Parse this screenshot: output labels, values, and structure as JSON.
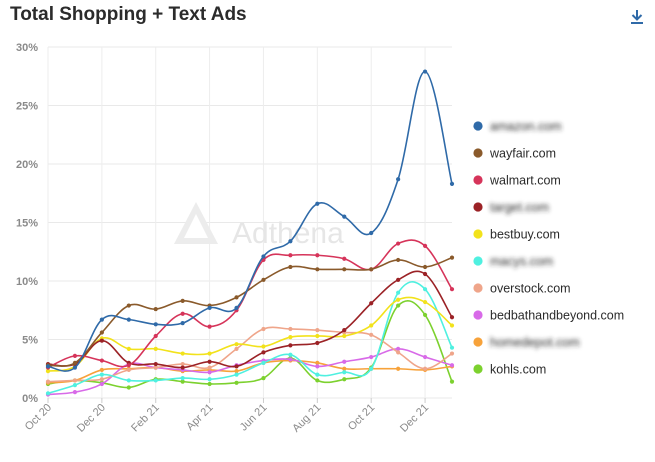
{
  "header": {
    "title": "Total Shopping + Text Ads",
    "download_icon": "download-icon"
  },
  "watermark": {
    "text": "Adthena"
  },
  "chart_data": {
    "type": "line",
    "title": "Total Shopping + Text Ads",
    "ylim": [
      0,
      30
    ],
    "yticks": [
      "0%",
      "5%",
      "10%",
      "15%",
      "20%",
      "25%",
      "30%"
    ],
    "xticks": [
      "Oct 20",
      "Dec 20",
      "Feb 21",
      "Apr 21",
      "Jun 21",
      "Aug 21",
      "Oct 21",
      "Dec 21"
    ],
    "x": [
      "Oct 20",
      "Nov 20",
      "Dec 20",
      "Jan 21",
      "Feb 21",
      "Mar 21",
      "Apr 21",
      "May 21",
      "Jun 21",
      "Jul 21",
      "Aug 21",
      "Sep 21",
      "Oct 21",
      "Nov 21",
      "Dec 21",
      "Jan 22"
    ],
    "grid": true,
    "legend_position": "right",
    "series": [
      {
        "name": "amazon.com",
        "color": "#2f6aa8",
        "blurred": true,
        "values": [
          2.7,
          2.6,
          6.7,
          6.7,
          6.3,
          6.4,
          7.7,
          7.7,
          12.1,
          13.4,
          16.6,
          15.5,
          14.1,
          18.7,
          27.9,
          18.3
        ]
      },
      {
        "name": "wayfair.com",
        "color": "#8a5a2b",
        "blurred": false,
        "values": [
          2.8,
          3.0,
          5.6,
          7.9,
          7.6,
          8.3,
          7.9,
          8.6,
          10.1,
          11.2,
          11.0,
          11.0,
          11.0,
          11.8,
          11.2,
          12.0
        ]
      },
      {
        "name": "walmart.com",
        "color": "#d6345a",
        "blurred": false,
        "values": [
          2.6,
          3.6,
          3.2,
          2.8,
          5.3,
          7.2,
          6.1,
          7.5,
          11.8,
          12.2,
          12.2,
          11.9,
          11.0,
          13.2,
          13.0,
          9.3
        ]
      },
      {
        "name": "target.com",
        "color": "#9b2226",
        "blurred": true,
        "values": [
          2.9,
          2.9,
          4.9,
          3.0,
          2.9,
          2.6,
          3.1,
          2.7,
          3.9,
          4.5,
          4.7,
          5.8,
          8.1,
          10.1,
          10.6,
          6.9
        ]
      },
      {
        "name": "bestbuy.com",
        "color": "#f2e21b",
        "blurred": false,
        "values": [
          2.3,
          2.7,
          5.1,
          4.2,
          4.2,
          3.8,
          3.8,
          4.6,
          4.4,
          5.2,
          5.3,
          5.3,
          6.2,
          8.4,
          8.2,
          6.2
        ]
      },
      {
        "name": "macys.com",
        "color": "#4ff0e0",
        "blurred": true,
        "values": [
          0.4,
          1.1,
          2.0,
          1.5,
          1.5,
          1.7,
          1.6,
          2.0,
          3.0,
          3.7,
          2.0,
          2.2,
          2.5,
          9.0,
          9.3,
          4.3
        ]
      },
      {
        "name": "overstock.com",
        "color": "#efa58a",
        "blurred": false,
        "values": [
          1.4,
          1.5,
          1.6,
          2.4,
          2.6,
          2.9,
          2.6,
          4.2,
          5.9,
          5.9,
          5.8,
          5.6,
          5.4,
          3.9,
          2.5,
          3.8
        ]
      },
      {
        "name": "bedbathandbeyond.com",
        "color": "#d86ae8",
        "blurred": false,
        "values": [
          0.3,
          0.5,
          1.2,
          2.9,
          2.6,
          2.4,
          2.2,
          2.8,
          3.2,
          3.3,
          2.7,
          3.1,
          3.5,
          4.2,
          3.5,
          2.8
        ]
      },
      {
        "name": "homedepot.com",
        "color": "#f7a23a",
        "blurred": true,
        "values": [
          1.3,
          1.5,
          2.4,
          2.5,
          2.6,
          2.3,
          2.4,
          2.3,
          3.0,
          3.2,
          3.0,
          2.5,
          2.5,
          2.5,
          2.4,
          2.7
        ]
      },
      {
        "name": "kohls.com",
        "color": "#7cd12e",
        "blurred": false,
        "values": [
          1.2,
          1.5,
          1.3,
          0.9,
          1.6,
          1.4,
          1.2,
          1.3,
          1.7,
          3.4,
          1.5,
          1.6,
          2.6,
          7.9,
          7.1,
          1.4
        ]
      }
    ]
  }
}
